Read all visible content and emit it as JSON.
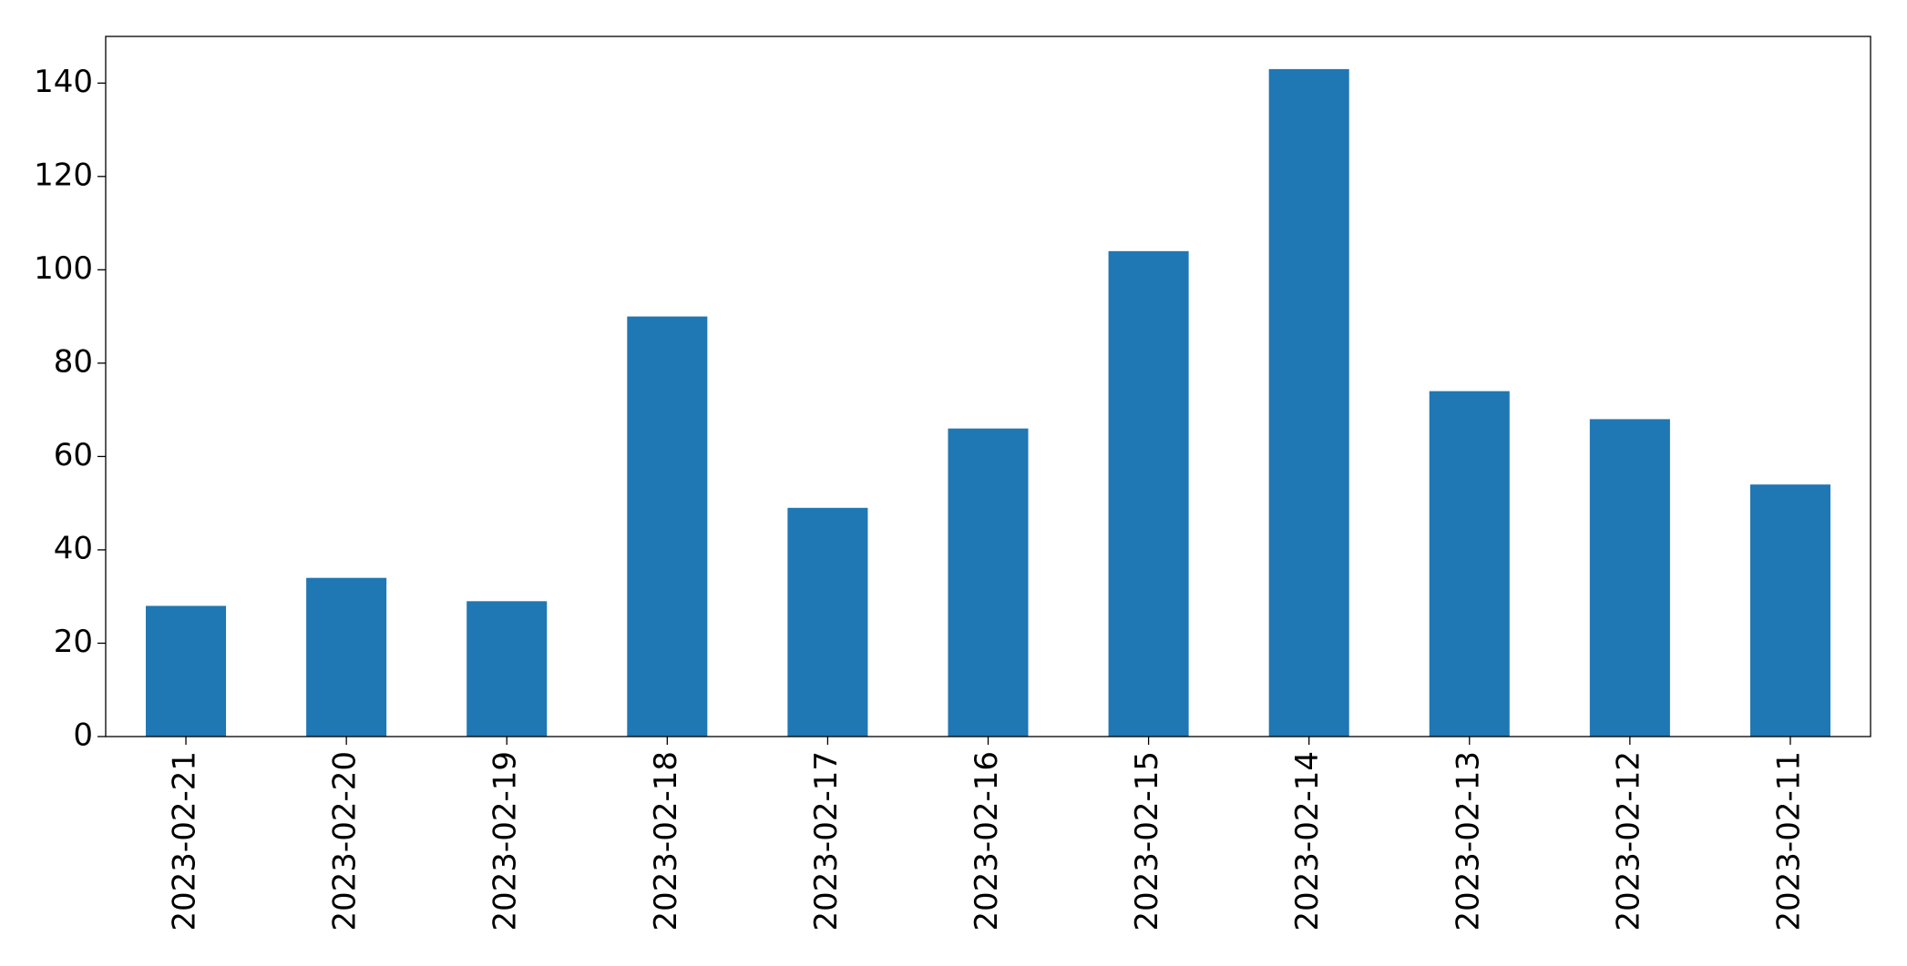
{
  "chart_data": {
    "type": "bar",
    "categories": [
      "2023-02-21",
      "2023-02-20",
      "2023-02-19",
      "2023-02-18",
      "2023-02-17",
      "2023-02-16",
      "2023-02-15",
      "2023-02-14",
      "2023-02-13",
      "2023-02-12",
      "2023-02-11"
    ],
    "values": [
      28,
      34,
      29,
      90,
      49,
      66,
      104,
      143,
      74,
      68,
      54
    ],
    "color": "#1f77b4",
    "ylim": [
      0,
      150
    ],
    "yticks": [
      0,
      20,
      40,
      60,
      80,
      100,
      120,
      140
    ],
    "grid": false
  }
}
